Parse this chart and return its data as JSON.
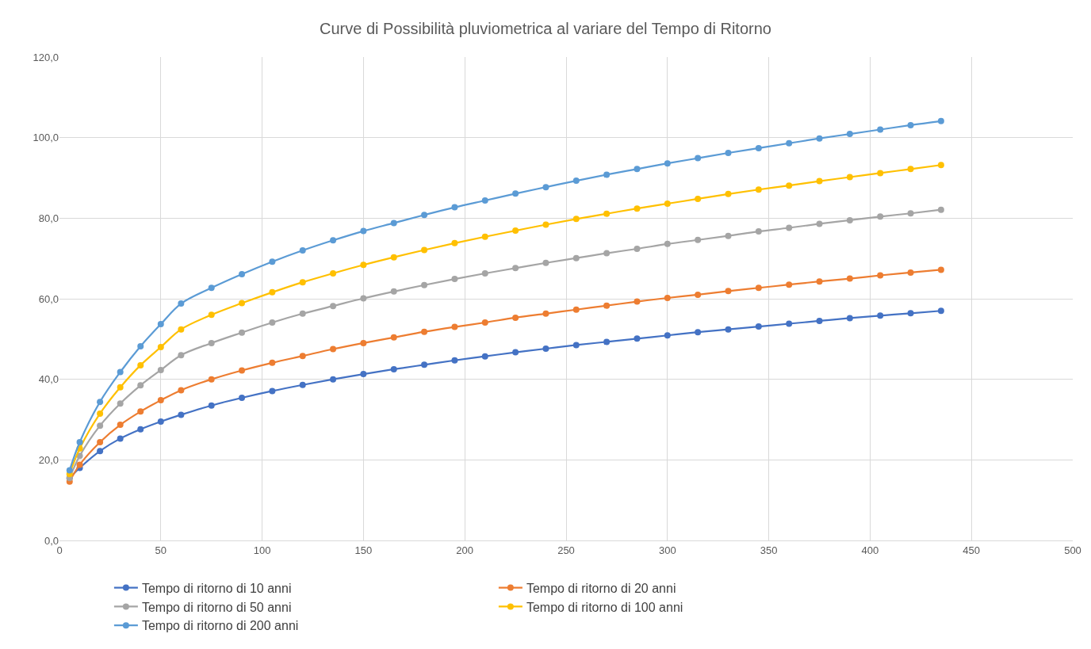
{
  "chart_data": {
    "type": "line",
    "title": "Curve di Possibilità pluviometrica al variare del Tempo di Ritorno",
    "x": [
      5,
      10,
      20,
      30,
      40,
      50,
      60,
      75,
      90,
      105,
      120,
      135,
      150,
      165,
      180,
      195,
      210,
      225,
      240,
      255,
      270,
      285,
      300,
      315,
      330,
      345,
      360,
      375,
      390,
      405,
      420,
      435
    ],
    "series": [
      {
        "name": "Tempo di ritorno di 10 anni",
        "color": "#4472c4",
        "values": [
          15.5,
          18.0,
          22.2,
          25.3,
          27.6,
          29.5,
          31.2,
          33.5,
          35.4,
          37.1,
          38.6,
          40.0,
          41.3,
          42.5,
          43.6,
          44.7,
          45.7,
          46.7,
          47.6,
          48.5,
          49.3,
          50.1,
          50.9,
          51.7,
          52.4,
          53.1,
          53.8,
          54.5,
          55.2,
          55.8,
          56.4,
          57.0
        ]
      },
      {
        "name": "Tempo di ritorno di 20 anni",
        "color": "#ed7d31",
        "values": [
          14.6,
          18.8,
          24.4,
          28.7,
          32.0,
          34.8,
          37.3,
          40.0,
          42.2,
          44.1,
          45.8,
          47.5,
          49.0,
          50.4,
          51.8,
          53.0,
          54.1,
          55.3,
          56.3,
          57.3,
          58.3,
          59.3,
          60.2,
          61.0,
          61.9,
          62.7,
          63.5,
          64.3,
          65.0,
          65.8,
          66.5,
          67.2
        ]
      },
      {
        "name": "Tempo di ritorno di 50 anni",
        "color": "#a5a5a5",
        "values": [
          15.5,
          21.0,
          28.5,
          34.0,
          38.5,
          42.3,
          46.0,
          49.0,
          51.6,
          54.1,
          56.3,
          58.2,
          60.1,
          61.8,
          63.4,
          64.9,
          66.3,
          67.6,
          68.9,
          70.1,
          71.3,
          72.4,
          73.6,
          74.6,
          75.6,
          76.7,
          77.6,
          78.6,
          79.5,
          80.4,
          81.2,
          82.1
        ]
      },
      {
        "name": "Tempo di ritorno di 100 anni",
        "color": "#ffc000",
        "values": [
          16.5,
          22.8,
          31.5,
          38.0,
          43.5,
          48.0,
          52.4,
          56.0,
          58.9,
          61.6,
          64.1,
          66.3,
          68.4,
          70.3,
          72.1,
          73.8,
          75.4,
          76.9,
          78.4,
          79.8,
          81.1,
          82.4,
          83.6,
          84.8,
          86.0,
          87.1,
          88.1,
          89.2,
          90.2,
          91.2,
          92.2,
          93.2
        ]
      },
      {
        "name": "Tempo di ritorno di 200 anni",
        "color": "#5b9bd5",
        "values": [
          17.4,
          24.4,
          34.4,
          41.8,
          48.2,
          53.7,
          58.8,
          62.7,
          66.1,
          69.2,
          72.0,
          74.5,
          76.8,
          78.8,
          80.8,
          82.7,
          84.4,
          86.1,
          87.7,
          89.3,
          90.8,
          92.2,
          93.6,
          94.9,
          96.2,
          97.4,
          98.6,
          99.8,
          100.9,
          102.0,
          103.1,
          104.1
        ]
      }
    ],
    "xlim": [
      0,
      500
    ],
    "xticks": [
      0,
      50,
      100,
      150,
      200,
      250,
      300,
      350,
      400,
      450,
      500
    ],
    "ylim": [
      0,
      120
    ],
    "yticks": [
      {
        "value": 0,
        "label": "0,0"
      },
      {
        "value": 20,
        "label": "20,0"
      },
      {
        "value": 40,
        "label": "40,0"
      },
      {
        "value": 60,
        "label": "60,0"
      },
      {
        "value": 80,
        "label": "80,0"
      },
      {
        "value": 100,
        "label": "100,0"
      },
      {
        "value": 120,
        "label": "120,0"
      }
    ],
    "grid": true,
    "legend": "bottom",
    "marker": "circle",
    "line_style": "solid"
  }
}
